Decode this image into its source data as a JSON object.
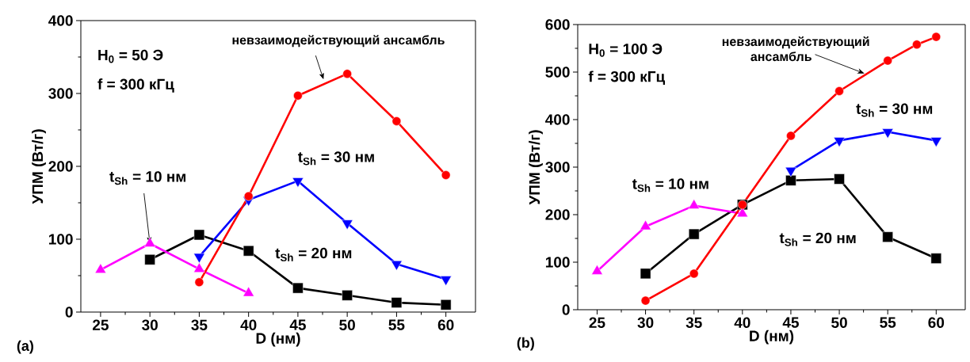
{
  "chart_data": [
    {
      "type": "line",
      "xlabel": "D (нм)",
      "ylabel": "УПМ (Вт/г)",
      "xlim": [
        23,
        63
      ],
      "ylim": [
        0,
        400
      ],
      "xticks": [
        25,
        30,
        35,
        40,
        45,
        50,
        55,
        60
      ],
      "yticks": [
        0,
        100,
        200,
        300,
        400
      ],
      "grid": false,
      "annotations": [
        "H$_{0}$ = 50 Э",
        "f = 300 кГц",
        {
          "text": "невзаимодействующий ансамбль",
          "x": 47.6,
          "y": 319
        },
        "(a)"
      ],
      "series": [
        {
          "name": "t$_{Sh}$ = 20 нм",
          "color": "#000000",
          "marker": "square",
          "x": [
            30,
            35,
            40,
            45,
            50,
            55,
            60
          ],
          "values": [
            72,
            106,
            84,
            33,
            23,
            13,
            10
          ]
        },
        {
          "name": "t$_{Sh}$ = 10 нм",
          "color": "#ff00ff",
          "marker": "triangle",
          "x": [
            25,
            30,
            35,
            40
          ],
          "values": [
            58,
            94,
            59,
            26
          ]
        },
        {
          "name": "t$_{Sh}$ = 30 нм",
          "color": "#0000ff",
          "marker": "triangle-down",
          "x": [
            35,
            40,
            45,
            50,
            55,
            60
          ],
          "values": [
            76,
            154,
            180,
            122,
            66,
            45
          ]
        },
        {
          "color": "#ff0000",
          "marker": "circle",
          "x": [
            35,
            40,
            45,
            50,
            55,
            60
          ],
          "values": [
            41,
            159,
            297,
            327,
            262,
            188
          ]
        }
      ]
    },
    {
      "type": "line",
      "xlabel": "D (нм)",
      "ylabel": "УПМ (Вт/г)",
      "xlim": [
        23,
        63
      ],
      "ylim": [
        0,
        600
      ],
      "xticks": [
        25,
        30,
        35,
        40,
        45,
        50,
        55,
        60
      ],
      "yticks": [
        0,
        100,
        200,
        300,
        400,
        500,
        600
      ],
      "grid": false,
      "annotations": [
        "H$_{0}$ = 100 Э",
        "f = 300 кГц",
        {
          "text": "невзаимодействующий ансамбль",
          "x": 52.6,
          "y": 497
        },
        "(b)"
      ],
      "series": [
        {
          "name": "t$_{Sh}$ = 20 нм",
          "color": "#000000",
          "marker": "square",
          "x": [
            30,
            35,
            40,
            45,
            50,
            55,
            60
          ],
          "values": [
            76,
            159,
            221,
            272,
            275,
            153,
            108
          ]
        },
        {
          "name": "t$_{Sh}$ = 10 нм",
          "color": "#ff00ff",
          "marker": "triangle",
          "x": [
            25,
            30,
            35,
            40
          ],
          "values": [
            81,
            175,
            219,
            202
          ]
        },
        {
          "name": "t$_{Sh}$ = 30 нм",
          "color": "#0000ff",
          "marker": "triangle-down",
          "x": [
            45,
            50,
            55,
            60
          ],
          "values": [
            293,
            356,
            374,
            356
          ]
        },
        {
          "color": "#ff0000",
          "marker": "circle",
          "x": [
            30,
            35,
            40,
            45,
            50,
            55,
            58,
            60
          ],
          "values": [
            19,
            76,
            221,
            366,
            460,
            524,
            558,
            574
          ]
        }
      ]
    }
  ]
}
